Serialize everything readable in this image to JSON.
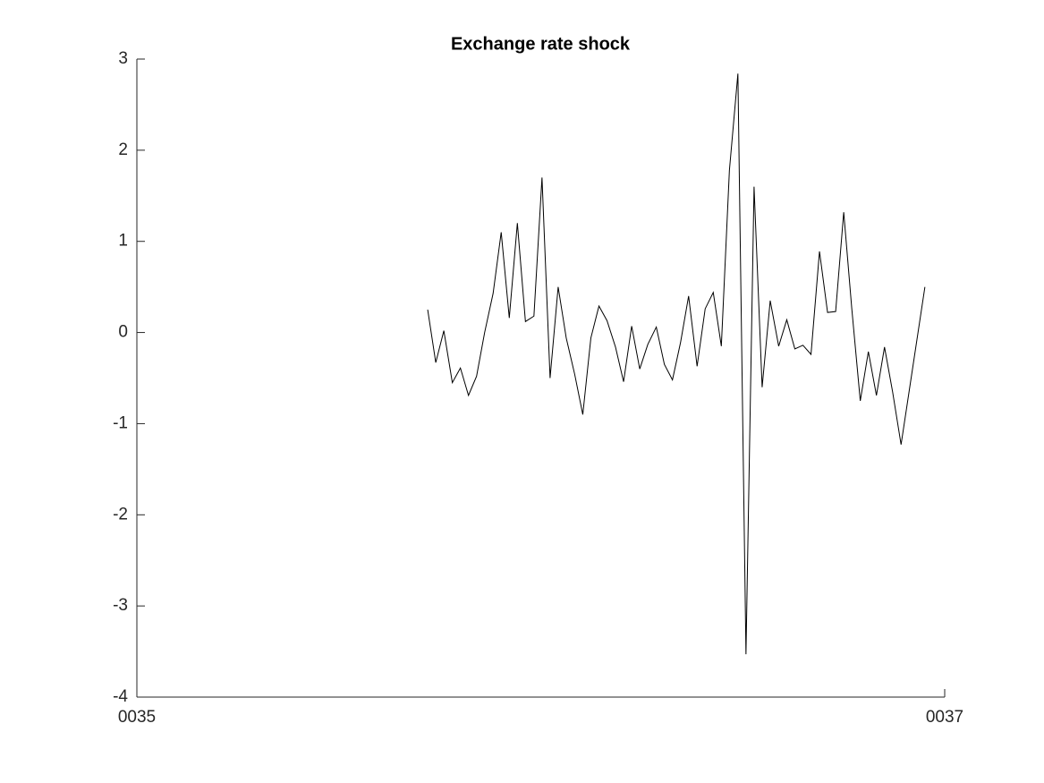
{
  "chart_data": {
    "type": "line",
    "title": "Exchange rate shock",
    "x": [
      35.72,
      35.74,
      35.76,
      35.781,
      35.801,
      35.821,
      35.841,
      35.861,
      35.882,
      35.902,
      35.922,
      35.942,
      35.962,
      35.983,
      36.003,
      36.023,
      36.043,
      36.063,
      36.084,
      36.104,
      36.124,
      36.144,
      36.164,
      36.185,
      36.205,
      36.225,
      36.245,
      36.265,
      36.286,
      36.306,
      36.326,
      36.346,
      36.366,
      36.387,
      36.407,
      36.427,
      36.447,
      36.467,
      36.488,
      36.508,
      36.528,
      36.548,
      36.568,
      36.589,
      36.609,
      36.629,
      36.649,
      36.669,
      36.69,
      36.71,
      36.73,
      36.75,
      36.77,
      36.791,
      36.811,
      36.831,
      36.851,
      36.871,
      36.892,
      36.951
    ],
    "series": [
      {
        "color": "#000000",
        "values": [
          0.25,
          -0.33,
          0.02,
          -0.55,
          -0.39,
          -0.69,
          -0.48,
          0.0,
          0.43,
          1.1,
          0.16,
          1.2,
          0.12,
          0.18,
          1.7,
          -0.5,
          0.5,
          -0.06,
          -0.46,
          -0.9,
          -0.06,
          0.29,
          0.13,
          -0.16,
          -0.54,
          0.07,
          -0.4,
          -0.13,
          0.06,
          -0.35,
          -0.52,
          -0.11,
          0.4,
          -0.37,
          0.26,
          0.44,
          -0.15,
          1.78,
          2.84,
          -3.53,
          1.6,
          -0.6,
          0.35,
          -0.15,
          0.14,
          -0.18,
          -0.14,
          -0.24,
          0.89,
          0.22,
          0.23,
          1.32,
          0.26,
          -0.75,
          -0.21,
          -0.69,
          -0.16,
          -0.65,
          -1.23,
          0.5
        ]
      }
    ],
    "xlim": [
      35,
      37
    ],
    "xticks": [
      {
        "value": 35,
        "label": "0035"
      },
      {
        "value": 37,
        "label": "0037"
      }
    ],
    "ylim": [
      -4,
      3
    ],
    "yticks": [
      -4,
      -3,
      -2,
      -1,
      0,
      1,
      2,
      3
    ]
  }
}
